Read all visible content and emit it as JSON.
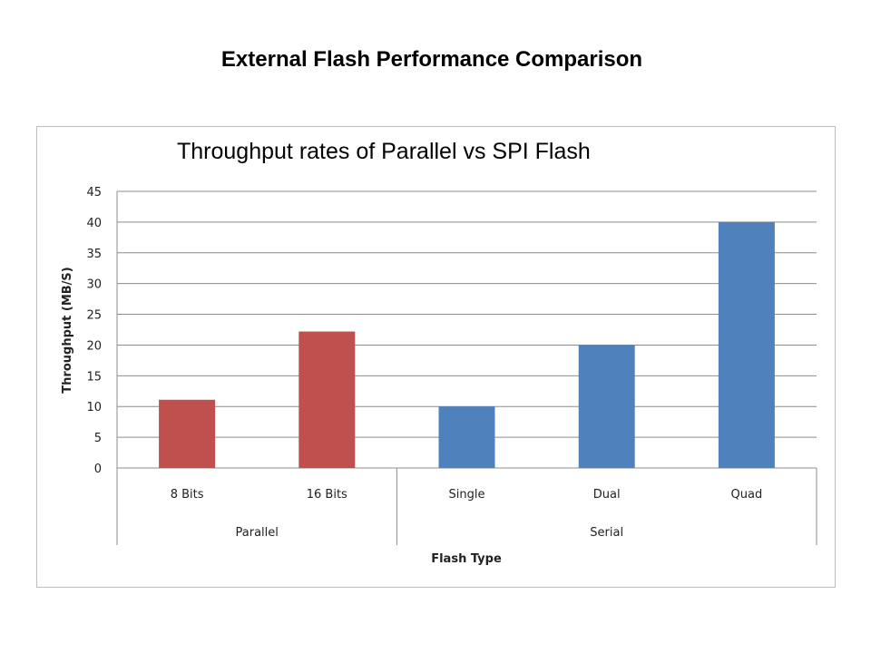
{
  "slide_title": "External Flash Performance Comparison",
  "chart_data": {
    "type": "bar",
    "title": "Throughput rates of Parallel vs SPI Flash",
    "xlabel": "Flash Type",
    "ylabel": "Throughput (MB/S)",
    "ylim": [
      0,
      45
    ],
    "yticks": [
      0,
      5,
      10,
      15,
      20,
      25,
      30,
      35,
      40,
      45
    ],
    "grid": true,
    "categories": [
      "8 Bits",
      "16 Bits",
      "Single",
      "Dual",
      "Quad"
    ],
    "groups": [
      {
        "name": "Parallel",
        "categories": [
          "8 Bits",
          "16 Bits"
        ],
        "color": "#c0504d"
      },
      {
        "name": "Serial",
        "categories": [
          "Single",
          "Dual",
          "Quad"
        ],
        "color": "#4f81bd"
      }
    ],
    "values": [
      11.1,
      22.2,
      10,
      20,
      40
    ]
  }
}
